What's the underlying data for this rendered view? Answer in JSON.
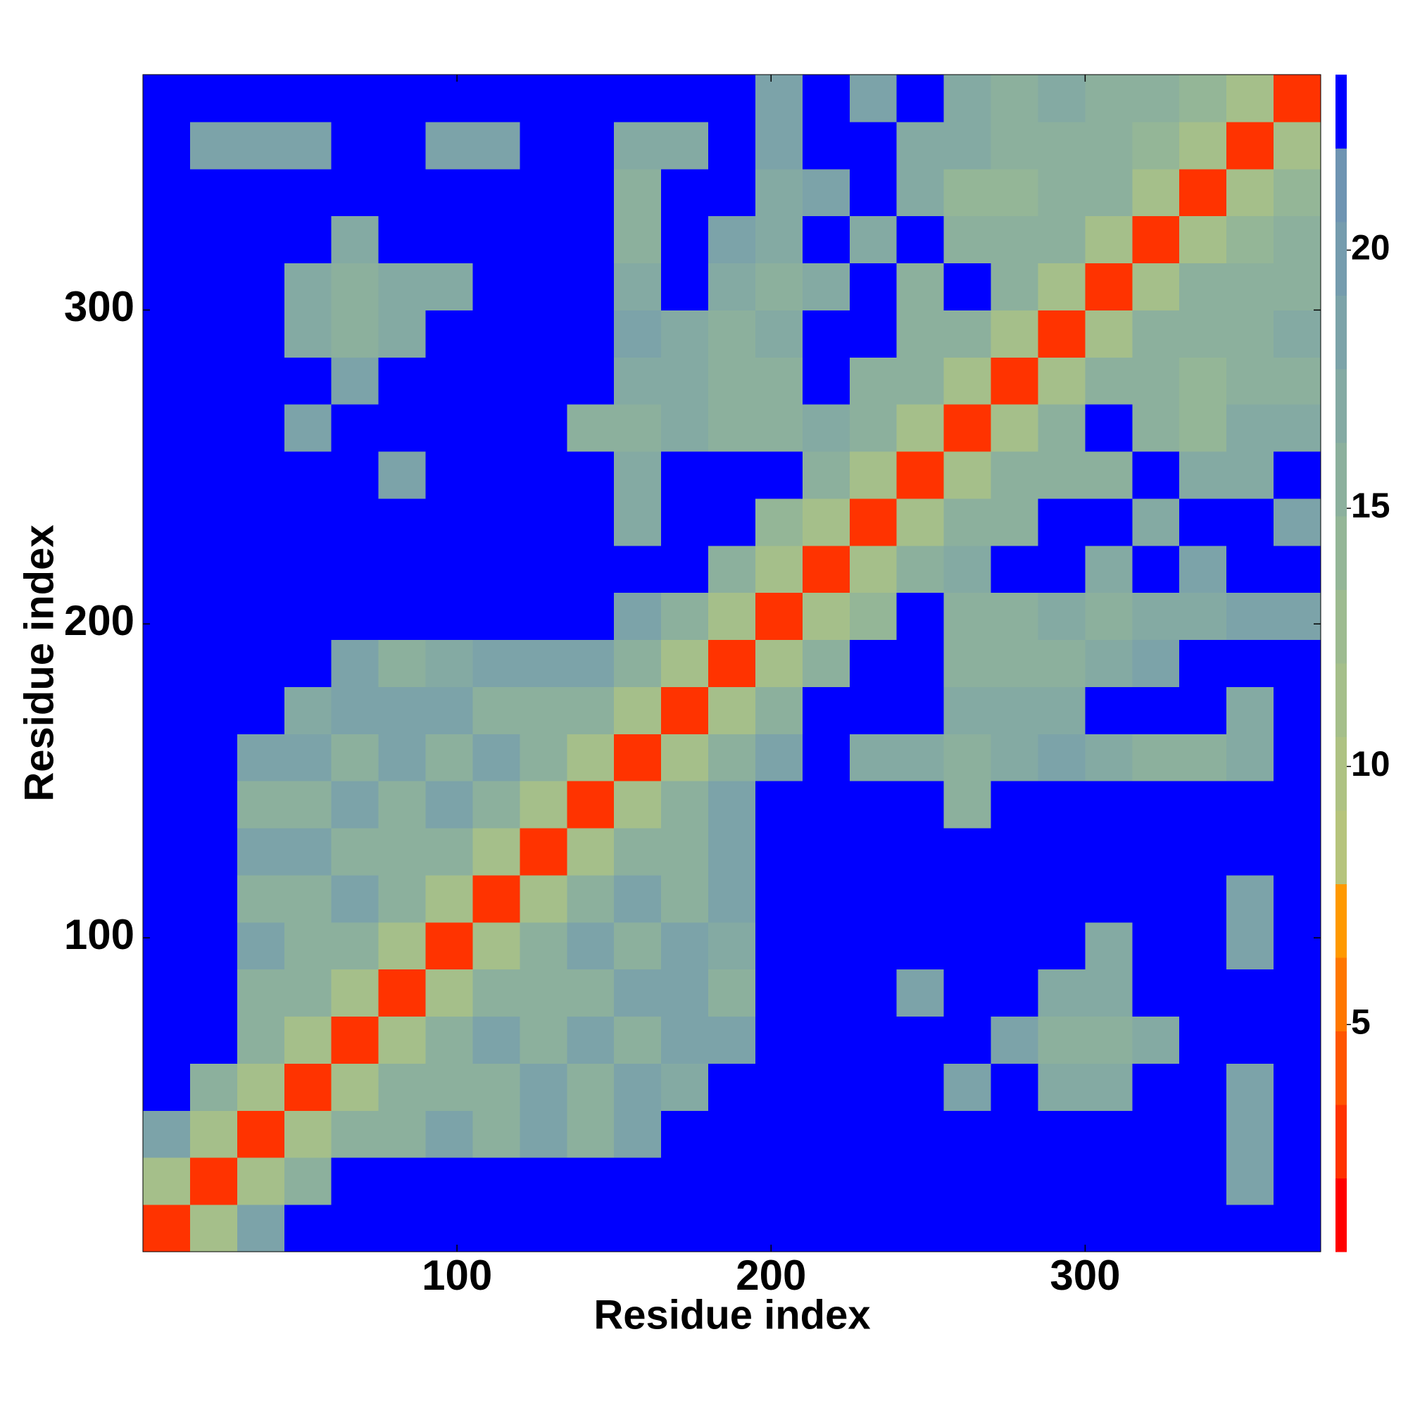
{
  "chart_data": {
    "type": "heatmap",
    "x_label": "Residue index",
    "y_label": "Residue index",
    "xlim": [
      0,
      375
    ],
    "ylim": [
      0,
      375
    ],
    "xticks": [
      100,
      200,
      300
    ],
    "yticks": [
      100,
      200,
      300
    ],
    "x_bins": [
      0,
      15,
      30,
      45,
      60,
      75,
      90,
      105,
      120,
      135,
      150,
      165,
      180,
      195,
      210,
      225,
      240,
      255,
      270,
      285,
      300,
      315,
      330,
      345,
      360,
      375
    ],
    "y_bins": [
      0,
      15,
      30,
      45,
      60,
      75,
      90,
      105,
      120,
      135,
      150,
      165,
      180,
      195,
      210,
      225,
      240,
      255,
      270,
      285,
      300,
      315,
      330,
      345,
      360,
      375
    ],
    "values": [
      [
        3,
        12,
        19,
        23,
        23,
        23,
        23,
        23,
        23,
        23,
        23,
        23,
        23,
        23,
        23,
        23,
        23,
        23,
        23,
        23,
        23,
        23,
        23,
        23,
        23
      ],
      [
        12,
        3,
        12,
        16,
        23,
        23,
        23,
        23,
        23,
        23,
        23,
        23,
        23,
        23,
        23,
        23,
        23,
        23,
        23,
        23,
        23,
        23,
        23,
        19,
        23
      ],
      [
        19,
        12,
        3,
        12,
        15,
        16,
        18,
        16,
        18,
        15,
        19,
        23,
        23,
        23,
        23,
        23,
        23,
        23,
        23,
        23,
        23,
        23,
        23,
        18,
        23
      ],
      [
        23,
        16,
        12,
        3,
        12,
        15,
        16,
        15,
        18,
        15,
        18,
        17,
        23,
        23,
        23,
        23,
        23,
        19,
        23,
        17,
        17,
        23,
        23,
        18,
        23
      ],
      [
        23,
        23,
        15,
        12,
        3,
        12,
        15,
        18,
        15,
        18,
        15,
        18,
        19,
        23,
        23,
        23,
        23,
        23,
        19,
        16,
        16,
        17,
        23,
        23,
        23
      ],
      [
        23,
        23,
        16,
        15,
        12,
        3,
        12,
        15,
        16,
        15,
        18,
        18,
        16,
        23,
        23,
        23,
        19,
        23,
        23,
        17,
        17,
        23,
        23,
        23,
        23
      ],
      [
        23,
        23,
        18,
        16,
        15,
        12,
        3,
        12,
        15,
        18,
        15,
        18,
        17,
        23,
        23,
        23,
        23,
        23,
        23,
        23,
        17,
        23,
        23,
        19,
        23
      ],
      [
        23,
        23,
        16,
        15,
        18,
        15,
        12,
        3,
        12,
        15,
        18,
        15,
        18,
        23,
        23,
        23,
        23,
        23,
        23,
        23,
        23,
        23,
        23,
        19,
        23
      ],
      [
        23,
        23,
        18,
        18,
        15,
        16,
        15,
        12,
        3,
        12,
        15,
        15,
        18,
        23,
        23,
        23,
        23,
        23,
        23,
        23,
        23,
        23,
        23,
        23,
        23
      ],
      [
        23,
        23,
        15,
        15,
        18,
        15,
        18,
        15,
        12,
        3,
        12,
        15,
        18,
        23,
        23,
        23,
        23,
        16,
        23,
        23,
        23,
        23,
        23,
        23,
        23
      ],
      [
        23,
        23,
        19,
        18,
        15,
        18,
        15,
        18,
        15,
        12,
        3,
        12,
        15,
        19,
        23,
        17,
        17,
        16,
        17,
        18,
        17,
        16,
        16,
        17,
        23
      ],
      [
        23,
        23,
        23,
        17,
        18,
        18,
        18,
        15,
        15,
        15,
        12,
        3,
        12,
        16,
        23,
        23,
        23,
        17,
        17,
        17,
        23,
        23,
        23,
        17,
        23
      ],
      [
        23,
        23,
        23,
        23,
        19,
        16,
        17,
        18,
        18,
        18,
        15,
        12,
        3,
        12,
        15,
        23,
        23,
        16,
        15,
        16,
        17,
        18,
        23,
        23,
        23
      ],
      [
        23,
        23,
        23,
        23,
        23,
        23,
        23,
        23,
        23,
        23,
        19,
        16,
        12,
        3,
        12,
        14,
        23,
        16,
        16,
        17,
        16,
        17,
        17,
        18,
        18
      ],
      [
        23,
        23,
        23,
        23,
        23,
        23,
        23,
        23,
        23,
        23,
        23,
        23,
        15,
        12,
        3,
        12,
        15,
        17,
        23,
        23,
        17,
        23,
        18,
        23,
        23
      ],
      [
        23,
        23,
        23,
        23,
        23,
        23,
        23,
        23,
        23,
        23,
        17,
        23,
        23,
        14,
        12,
        3,
        12,
        15,
        16,
        23,
        23,
        17,
        23,
        23,
        18
      ],
      [
        23,
        23,
        23,
        23,
        23,
        19,
        23,
        23,
        23,
        23,
        17,
        23,
        23,
        23,
        15,
        12,
        3,
        12,
        15,
        15,
        16,
        23,
        17,
        17,
        23
      ],
      [
        23,
        23,
        23,
        19,
        23,
        23,
        23,
        23,
        23,
        16,
        16,
        17,
        16,
        16,
        17,
        15,
        12,
        3,
        12,
        15,
        23,
        15,
        14,
        17,
        17
      ],
      [
        23,
        23,
        23,
        23,
        19,
        23,
        23,
        23,
        23,
        23,
        17,
        17,
        15,
        16,
        23,
        16,
        15,
        12,
        3,
        12,
        16,
        15,
        14,
        16,
        16
      ],
      [
        23,
        23,
        23,
        17,
        16,
        17,
        23,
        23,
        23,
        23,
        18,
        17,
        16,
        17,
        23,
        23,
        15,
        15,
        12,
        3,
        12,
        15,
        15,
        16,
        17
      ],
      [
        23,
        23,
        23,
        17,
        16,
        17,
        17,
        23,
        23,
        23,
        17,
        23,
        17,
        16,
        17,
        23,
        16,
        23,
        16,
        12,
        3,
        12,
        15,
        16,
        16
      ],
      [
        23,
        23,
        23,
        23,
        17,
        23,
        23,
        23,
        23,
        23,
        16,
        23,
        18,
        17,
        23,
        17,
        23,
        15,
        15,
        15,
        12,
        3,
        12,
        14,
        15
      ],
      [
        23,
        23,
        23,
        23,
        23,
        23,
        23,
        23,
        23,
        23,
        16,
        23,
        23,
        17,
        18,
        23,
        17,
        14,
        14,
        15,
        15,
        12,
        3,
        12,
        14
      ],
      [
        23,
        19,
        18,
        18,
        23,
        23,
        19,
        19,
        23,
        23,
        17,
        17,
        23,
        18,
        23,
        23,
        17,
        17,
        16,
        16,
        16,
        14,
        12,
        3,
        12
      ],
      [
        23,
        23,
        23,
        23,
        23,
        23,
        23,
        23,
        23,
        23,
        23,
        23,
        23,
        18,
        23,
        18,
        23,
        17,
        16,
        17,
        16,
        15,
        14,
        12,
        3
      ]
    ],
    "colorbar": {
      "lim": [
        0.6,
        23.4
      ],
      "ticks": [
        5,
        10,
        15,
        20
      ],
      "levels": [
        0.6,
        2.025,
        3.45,
        4.875,
        6.3,
        7.725,
        9.15,
        10.575,
        12,
        13.425,
        14.85,
        16.275,
        17.7,
        19.125,
        20.55,
        21.975,
        23.4
      ],
      "colors": [
        "#ff0000",
        "#ff3300",
        "#ff5500",
        "#ff7700",
        "#ff9900",
        "#b6c47c",
        "#aec283",
        "#a5bf8a",
        "#9dbb90",
        "#94b697",
        "#8cb09d",
        "#84aaa3",
        "#7ca3a9",
        "#759cae",
        "#6e94b2",
        "#0000ff"
      ]
    }
  }
}
